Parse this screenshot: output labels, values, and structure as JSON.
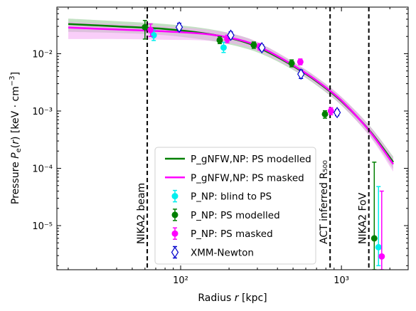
{
  "chart_data": {
    "type": "scatter",
    "xlabel": "Radius r [kpc]",
    "ylabel": "Pressure P_e(r) [keV·cm⁻³]",
    "xscale": "log",
    "yscale": "log",
    "xlim": [
      17,
      2600
    ],
    "ylim": [
      1.7e-06,
      0.065
    ],
    "grid": false,
    "legend_position": "lower-center",
    "x_tick_labels": [
      {
        "value": 100,
        "label": "10²"
      },
      {
        "value": 1000,
        "label": "10³"
      }
    ],
    "y_tick_labels": [
      {
        "value": 1e-05,
        "label": "10⁻⁵"
      },
      {
        "value": 0.0001,
        "label": "10⁻⁴"
      },
      {
        "value": 0.001,
        "label": "10⁻³"
      },
      {
        "value": 0.01,
        "label": "10⁻²"
      }
    ],
    "vlines": [
      {
        "x": 62,
        "label": "NIKA2 beam"
      },
      {
        "x": 850,
        "label": "ACT inferred R₅₀₀"
      },
      {
        "x": 1480,
        "label": "NIKA2 FoV"
      }
    ],
    "model_x": [
      20,
      40,
      80,
      150,
      250,
      350,
      500,
      700,
      1000,
      1500,
      2100
    ],
    "series": [
      {
        "name": "P_gNFW,NP: PS modelled",
        "kind": "line",
        "color": "#008000",
        "band_color": "#90c890",
        "y": [
          0.033,
          0.03,
          0.027,
          0.022,
          0.016,
          0.0106,
          0.0061,
          0.0033,
          0.00148,
          0.00045,
          0.000128
        ],
        "y_low": [
          0.024,
          0.023,
          0.021,
          0.017,
          0.0125,
          0.0088,
          0.0052,
          0.0028,
          0.00125,
          0.00037,
          9.8e-05
        ],
        "y_high": [
          0.041,
          0.037,
          0.033,
          0.027,
          0.0195,
          0.0128,
          0.0072,
          0.0039,
          0.00175,
          0.00055,
          0.00016
        ]
      },
      {
        "name": "P_gNFW,NP: PS masked",
        "kind": "line",
        "color": "#ff00ff",
        "band_color": "#f4a6f4",
        "y": [
          0.0285,
          0.0265,
          0.0245,
          0.0218,
          0.0165,
          0.0111,
          0.0063,
          0.0034,
          0.00152,
          0.00044,
          0.000118
        ],
        "y_low": [
          0.018,
          0.018,
          0.0175,
          0.0168,
          0.0135,
          0.0093,
          0.0054,
          0.0029,
          0.00127,
          0.00036,
          8.8e-05
        ],
        "y_high": [
          0.036,
          0.033,
          0.03,
          0.026,
          0.0195,
          0.0129,
          0.0072,
          0.0039,
          0.00177,
          0.00054,
          0.000152
        ]
      },
      {
        "name": "P_NP: blind to PS",
        "kind": "points",
        "color": "#00eeee",
        "points": [
          {
            "x": 68,
            "y": 0.021,
            "lo": 0.017,
            "hi": 0.026
          },
          {
            "x": 185,
            "y": 0.0128,
            "lo": 0.0105,
            "hi": 0.0158
          },
          {
            "x": 1700,
            "y": 4.2e-06,
            "lo": 2e-06,
            "hi": 4.8e-05
          }
        ]
      },
      {
        "name": "P_NP: PS modelled",
        "kind": "points",
        "color": "#007f00",
        "points": [
          {
            "x": 60,
            "y": 0.029,
            "lo": 0.018,
            "hi": 0.038
          },
          {
            "x": 175,
            "y": 0.0172,
            "lo": 0.015,
            "hi": 0.0198
          },
          {
            "x": 285,
            "y": 0.0142,
            "lo": 0.0124,
            "hi": 0.016
          },
          {
            "x": 490,
            "y": 0.0068,
            "lo": 0.0059,
            "hi": 0.0078
          },
          {
            "x": 790,
            "y": 0.00088,
            "lo": 0.00075,
            "hi": 0.00101
          },
          {
            "x": 1600,
            "y": 6e-06,
            "lo": 1.7e-06,
            "hi": 0.000128
          }
        ]
      },
      {
        "name": "P_NP: PS masked",
        "kind": "points",
        "color": "#ff00ff",
        "points": [
          {
            "x": 65,
            "y": 0.026,
            "lo": 0.02,
            "hi": 0.033
          },
          {
            "x": 195,
            "y": 0.018,
            "lo": 0.0155,
            "hi": 0.021
          },
          {
            "x": 310,
            "y": 0.0133,
            "lo": 0.0116,
            "hi": 0.015
          },
          {
            "x": 555,
            "y": 0.0072,
            "lo": 0.0064,
            "hi": 0.0081
          },
          {
            "x": 860,
            "y": 0.001,
            "lo": 0.00086,
            "hi": 0.00114
          },
          {
            "x": 1780,
            "y": 2.9e-06,
            "lo": 1.7e-06,
            "hi": 4e-05
          }
        ]
      },
      {
        "name": "XMM-Newton",
        "kind": "diamonds",
        "color": "#0000cc",
        "points": [
          {
            "x": 98,
            "y": 0.029,
            "lo": 0.025,
            "hi": 0.034
          },
          {
            "x": 205,
            "y": 0.021,
            "lo": 0.0185,
            "hi": 0.024
          },
          {
            "x": 320,
            "y": 0.0127,
            "lo": 0.0112,
            "hi": 0.0143
          },
          {
            "x": 560,
            "y": 0.0044,
            "lo": 0.0037,
            "hi": 0.0052
          },
          {
            "x": 940,
            "y": 0.00094,
            "lo": 0.00083,
            "hi": 0.00106
          }
        ]
      }
    ]
  }
}
